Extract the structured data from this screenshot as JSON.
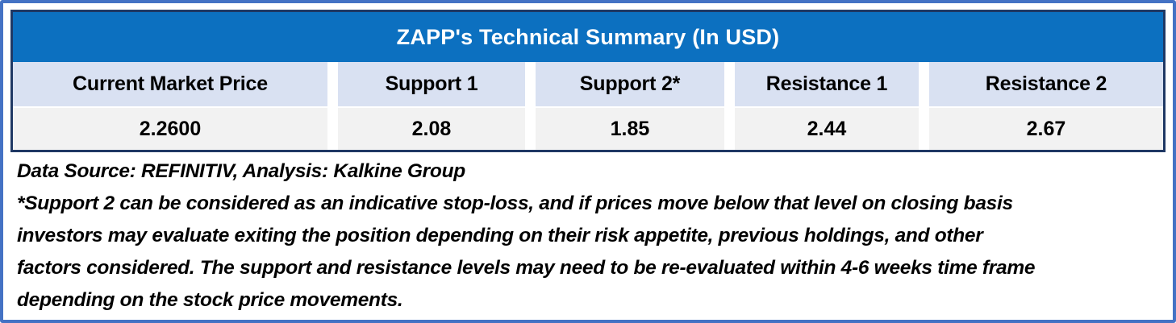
{
  "table": {
    "title": "ZAPP's Technical Summary (In USD)",
    "columns": [
      {
        "header": "Current Market Price",
        "value": "2.2600"
      },
      {
        "header": "Support 1",
        "value": "2.08"
      },
      {
        "header": "Support 2*",
        "value": "1.85"
      },
      {
        "header": "Resistance 1",
        "value": "2.44"
      },
      {
        "header": "Resistance 2",
        "value": "2.67"
      }
    ]
  },
  "footer": {
    "data_source": "Data Source: REFINITIV, Analysis: Kalkine Group",
    "disclaimer_lines": [
      "*Support 2 can be considered as an indicative stop-loss, and if prices move below that level on closing basis",
      "investors may evaluate exiting the position depending on their risk appetite, previous holdings, and other",
      "factors considered. The support and resistance levels may need to be re-evaluated within 4-6 weeks time frame",
      "depending on the stock price movements."
    ]
  },
  "chart_data": {
    "type": "table",
    "title": "ZAPP's Technical Summary (In USD)",
    "categories": [
      "Current Market Price",
      "Support 1",
      "Support 2*",
      "Resistance 1",
      "Resistance 2"
    ],
    "values": [
      2.26,
      2.08,
      1.85,
      2.44,
      2.67
    ]
  },
  "colors": {
    "outer_border": "#4472C4",
    "table_border": "#1F3864",
    "title_bar_bg": "#0C70C0",
    "title_text": "#FFFFFF",
    "header_row_bg": "#D9E1F2",
    "value_row_bg": "#F2F2F2",
    "text": "#000000"
  }
}
